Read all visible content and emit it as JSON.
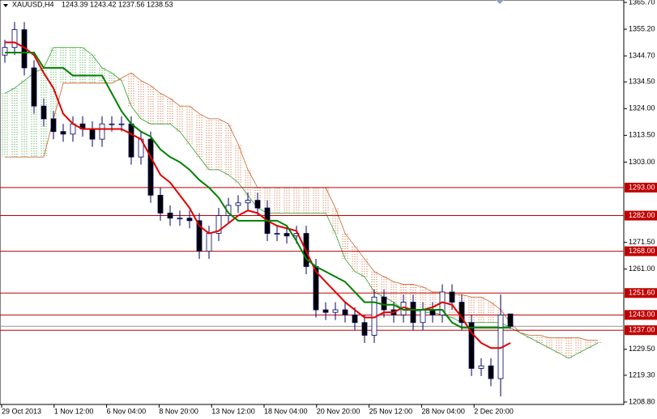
{
  "chart_data": {
    "type": "candlestick",
    "title": "XAUUSD,H4",
    "open": [
      1345,
      1348,
      1355,
      1340,
      1325,
      1320,
      1315,
      1314,
      1318,
      1316,
      1312,
      1318,
      1318,
      1318,
      1305,
      1312,
      1290,
      1283,
      1281,
      1281,
      1280,
      1268,
      1275,
      1282,
      1286,
      1287,
      1288,
      1285,
      1275,
      1275,
      1274,
      1275,
      1262,
      1245,
      1244,
      1245,
      1243,
      1240,
      1235,
      1250,
      1245,
      1243,
      1248,
      1240,
      1245,
      1243,
      1252,
      1248,
      1240,
      1222,
      1223,
      1218,
      1243.39
    ],
    "high": [
      1351,
      1358,
      1358,
      1343,
      1328,
      1323,
      1318,
      1321,
      1321,
      1319,
      1321,
      1321,
      1321,
      1321,
      1315,
      1315,
      1293,
      1286,
      1284,
      1284,
      1283,
      1278,
      1285,
      1289,
      1290,
      1291,
      1291,
      1288,
      1278,
      1278,
      1278,
      1278,
      1265,
      1248,
      1248,
      1248,
      1246,
      1243,
      1253,
      1253,
      1248,
      1251,
      1251,
      1248,
      1248,
      1255,
      1255,
      1251,
      1243,
      1226,
      1226,
      1251,
      1243.42
    ],
    "low": [
      1342,
      1345,
      1337,
      1322,
      1317,
      1312,
      1311,
      1311,
      1313,
      1309,
      1309,
      1315,
      1315,
      1302,
      1302,
      1287,
      1280,
      1278,
      1278,
      1277,
      1265,
      1265,
      1272,
      1279,
      1283,
      1284,
      1282,
      1272,
      1272,
      1271,
      1271,
      1259,
      1242,
      1241,
      1241,
      1240,
      1237,
      1232,
      1232,
      1242,
      1240,
      1240,
      1237,
      1237,
      1240,
      1240,
      1245,
      1237,
      1219,
      1219,
      1215,
      1211,
      1237.56
    ],
    "close": [
      1348,
      1355,
      1340,
      1325,
      1320,
      1315,
      1314,
      1318,
      1316,
      1312,
      1318,
      1318,
      1318,
      1305,
      1312,
      1290,
      1283,
      1281,
      1281,
      1280,
      1268,
      1275,
      1282,
      1286,
      1287,
      1288,
      1285,
      1275,
      1275,
      1274,
      1275,
      1262,
      1245,
      1244,
      1245,
      1243,
      1240,
      1235,
      1250,
      1245,
      1243,
      1248,
      1240,
      1245,
      1243,
      1252,
      1248,
      1240,
      1222,
      1223,
      1218,
      1243,
      1238.53
    ],
    "up_color": "#ffffff",
    "down_color": "#000000",
    "wick_color": "#000060",
    "series": [
      {
        "color": "#e00000",
        "values": [
          1350,
          1350,
          1348,
          1345,
          1338,
          1332,
          1322,
          1318,
          1316,
          1316,
          1316,
          1316,
          1316,
          1314,
          1312,
          1305,
          1298,
          1295,
          1290,
          1285,
          1278,
          1275,
          1276,
          1279,
          1282,
          1284,
          1283,
          1280,
          1278,
          1277,
          1276,
          1268,
          1260,
          1256,
          1252,
          1248,
          1245,
          1242,
          1242,
          1244,
          1244,
          1246,
          1245,
          1245,
          1246,
          1248,
          1247,
          1242,
          1236,
          1232,
          1230,
          1230,
          1232
        ]
      },
      {
        "color": "#008000",
        "values": [
          1346,
          1346,
          1346,
          1346,
          1340,
          1340,
          1340,
          1337,
          1337,
          1337,
          1337,
          1330,
          1323,
          1318,
          1315,
          1313,
          1308,
          1305,
          1303,
          1300,
          1296,
          1293,
          1289,
          1283,
          1280,
          1280,
          1280,
          1280,
          1280,
          1278,
          1272,
          1265,
          1262,
          1260,
          1258,
          1256,
          1252,
          1248,
          1248,
          1247,
          1247,
          1245,
          1245,
          1245,
          1245,
          1245,
          1240,
          1238,
          1238,
          1238,
          1238,
          1238,
          1238
        ]
      }
    ],
    "cloud": {
      "span_a": [
        1330,
        1332,
        1335,
        1338,
        1340,
        1348,
        1348,
        1348,
        1348,
        1345,
        1340,
        1338,
        1335,
        1325,
        1320,
        1318,
        1318,
        1318,
        1315,
        1310,
        1305,
        1300,
        1300,
        1298,
        1295,
        1290,
        1285,
        1283,
        1283,
        1283,
        1283,
        1283,
        1283,
        1283,
        1275,
        1265,
        1260,
        1258,
        1252,
        1250,
        1248,
        1245,
        1245,
        1244,
        1244,
        1243,
        1242,
        1240,
        1240,
        1240,
        1240,
        1240,
        1238,
        1236,
        1234,
        1232,
        1230,
        1228,
        1226,
        1228,
        1230,
        1232
      ],
      "span_b": [
        1305,
        1305,
        1305,
        1305,
        1305,
        1320,
        1334,
        1334,
        1334,
        1334,
        1334,
        1334,
        1336,
        1338,
        1335,
        1333,
        1330,
        1328,
        1325,
        1325,
        1322,
        1320,
        1320,
        1318,
        1310,
        1300,
        1293,
        1293,
        1293,
        1293,
        1293,
        1293,
        1293,
        1293,
        1285,
        1275,
        1270,
        1265,
        1260,
        1258,
        1256,
        1255,
        1255,
        1254,
        1252,
        1252,
        1251,
        1251,
        1250,
        1250,
        1248,
        1245,
        1240,
        1236,
        1235,
        1235,
        1234,
        1234,
        1234,
        1234,
        1233,
        1233
      ],
      "up_color": "#2e9e2e",
      "down_color": "#c8602a"
    },
    "levels": [
      {
        "value": 1293,
        "label": "1293.00"
      },
      {
        "value": 1282,
        "label": "1282.00"
      },
      {
        "value": 1268,
        "label": "1268.00"
      },
      {
        "value": 1251.6,
        "label": "1251.60"
      },
      {
        "value": 1243,
        "label": "1243.00"
      },
      {
        "value": 1237,
        "label": "1237.00"
      }
    ],
    "level_color": "#c00000",
    "ylim": [
      1207.85,
      1366.65
    ],
    "yticks": [
      {
        "value": 1365.7,
        "label": "1365.70"
      },
      {
        "value": 1355.2,
        "label": "1355.20"
      },
      {
        "value": 1344.7,
        "label": "1344.70"
      },
      {
        "value": 1334.5,
        "label": "1334.50"
      },
      {
        "value": 1324,
        "label": "1324.00"
      },
      {
        "value": 1313.5,
        "label": "1313.50"
      },
      {
        "value": 1303,
        "label": "1303.00"
      },
      {
        "value": 1271.5,
        "label": "1271.50"
      },
      {
        "value": 1261,
        "label": "1261.00"
      },
      {
        "value": 1229.5,
        "label": "1229.50"
      },
      {
        "value": 1219.3,
        "label": "1219.30"
      },
      {
        "value": 1208.8,
        "label": "1208.80"
      }
    ],
    "xlabels": [
      "29 Oct 2013",
      "1 Nov 12:00",
      "6 Nov 04:00",
      "8 Nov 20:00",
      "13 Nov 12:00",
      "18 Nov 04:00",
      "20 Nov 20:00",
      "25 Nov 12:00",
      "28 Nov 04:00",
      "2 Dec 20:00"
    ]
  }
}
